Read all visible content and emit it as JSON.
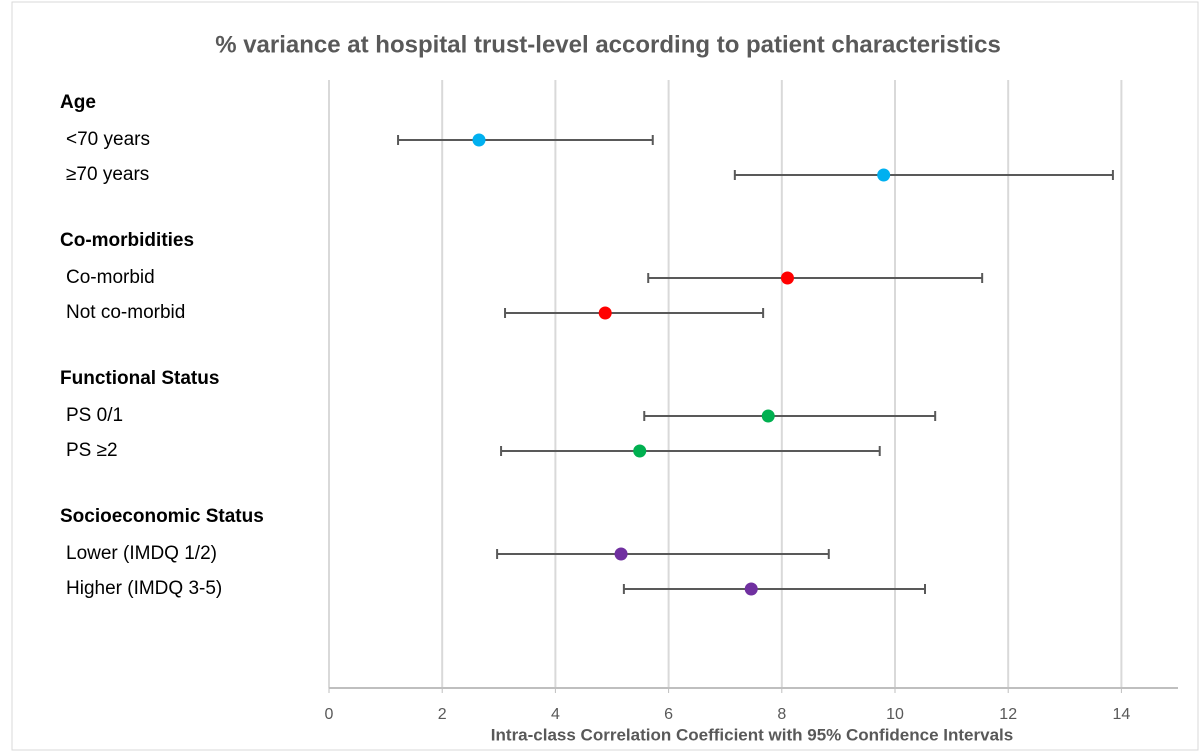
{
  "chart_data": {
    "type": "forest",
    "title": "% variance at hospital trust-level according to patient characteristics",
    "x_label": "Intra-class Correlation Coefficient with 95% Confidence Intervals",
    "xlim": [
      0,
      15
    ],
    "xticks": [
      0,
      2,
      4,
      6,
      8,
      10,
      12,
      14
    ],
    "grid": true,
    "groups": [
      {
        "name": "Age",
        "color": "#00b0f0",
        "rows": [
          {
            "label": "<70 years",
            "value": 2.65,
            "low": 1.22,
            "high": 5.72
          },
          {
            "label": "≥70 years",
            "value": 9.8,
            "low": 7.17,
            "high": 13.85
          }
        ]
      },
      {
        "name": "Co-morbidities",
        "color": "#ff0000",
        "rows": [
          {
            "label": "Co-morbid",
            "value": 8.1,
            "low": 5.64,
            "high": 11.54
          },
          {
            "label": "Not co-morbid",
            "value": 4.88,
            "low": 3.11,
            "high": 7.67
          }
        ]
      },
      {
        "name": "Functional Status",
        "color": "#00b050",
        "rows": [
          {
            "label": "PS 0/1",
            "value": 7.76,
            "low": 5.57,
            "high": 10.71
          },
          {
            "label": "PS ≥2",
            "value": 5.49,
            "low": 3.04,
            "high": 9.73
          }
        ]
      },
      {
        "name": "Socioeconomic Status",
        "color": "#7030a0",
        "rows": [
          {
            "label": "Lower (IMDQ 1/2)",
            "value": 5.16,
            "low": 2.97,
            "high": 8.83
          },
          {
            "label": "Higher (IMDQ 3-5)",
            "value": 7.46,
            "low": 5.21,
            "high": 10.53
          }
        ]
      }
    ]
  }
}
